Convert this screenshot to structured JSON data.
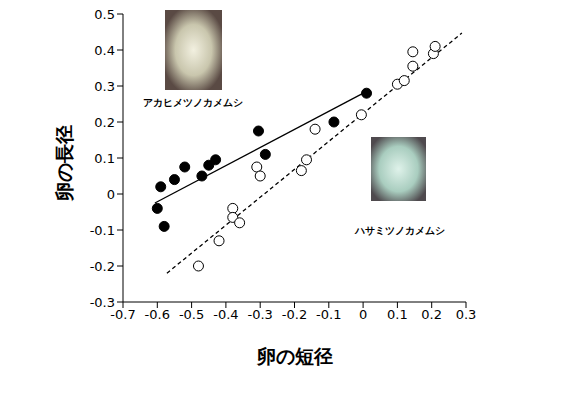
{
  "chart_data": {
    "type": "scatter",
    "x_label": "卵の短径",
    "y_label": "卵の長径",
    "xlim": [
      -0.7,
      0.3
    ],
    "xticks": [
      -0.7,
      -0.6,
      -0.5,
      -0.4,
      -0.3,
      -0.2,
      -0.1,
      0,
      0.1,
      0.2,
      0.3
    ],
    "ylim": [
      -0.3,
      0.5
    ],
    "yticks": [
      -0.3,
      -0.2,
      -0.1,
      0,
      0.1,
      0.2,
      0.3,
      0.4,
      0.5
    ],
    "grid": false,
    "series": [
      {
        "name": "アカヒメツノカメムシ",
        "color": "#000000",
        "marker": "filled_circle",
        "line_style": "solid",
        "x": [
          -0.59,
          -0.6,
          -0.58,
          -0.55,
          -0.52,
          -0.47,
          -0.45,
          -0.43,
          -0.305,
          -0.285,
          -0.085,
          0.01
        ],
        "values": [
          0.02,
          -0.04,
          -0.09,
          0.04,
          0.075,
          0.05,
          0.08,
          0.095,
          0.175,
          0.11,
          0.2,
          0.28
        ],
        "trend": {
          "x": [
            -0.607,
            0.02
          ],
          "values": [
            -0.025,
            0.29
          ]
        }
      },
      {
        "name": "ハサミツノカメムシ",
        "color": "#000000",
        "marker": "open_circle",
        "line_style": "dashed",
        "x": [
          -0.48,
          -0.42,
          -0.38,
          -0.38,
          -0.36,
          -0.31,
          -0.3,
          -0.18,
          -0.165,
          -0.14,
          -0.005,
          0.1,
          0.12,
          0.145,
          0.145,
          0.205,
          0.21
        ],
        "values": [
          -0.2,
          -0.13,
          -0.04,
          -0.065,
          -0.08,
          0.075,
          0.05,
          0.065,
          0.095,
          0.18,
          0.22,
          0.305,
          0.315,
          0.355,
          0.395,
          0.39,
          0.41
        ],
        "trend": {
          "x": [
            -0.572,
            0.288
          ],
          "values": [
            -0.22,
            0.447
          ]
        }
      }
    ]
  }
}
